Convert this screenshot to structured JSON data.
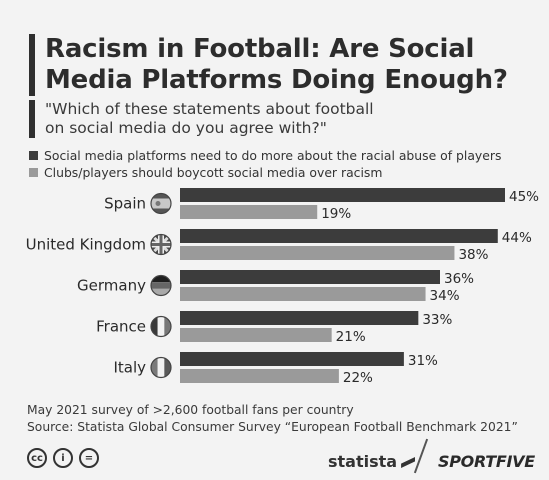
{
  "title_lines": [
    "Racism in Football: Are Social",
    "Media Platforms Doing Enough?"
  ],
  "subtitle_lines": [
    "\"Which of these statements about football",
    "on social media do you agree with?\""
  ],
  "legend": [
    {
      "label": "Social media platforms need to do more about the racial abuse of players",
      "color": "#3c3c3c"
    },
    {
      "label": "Clubs/players should boycott social media over racism",
      "color": "#9a9a9a"
    }
  ],
  "chart_data": {
    "type": "bar",
    "orientation": "horizontal",
    "categories": [
      "Spain",
      "United Kingdom",
      "Germany",
      "France",
      "Italy"
    ],
    "series": [
      {
        "name": "Social media platforms need to do more about the racial abuse of players",
        "values": [
          45,
          44,
          36,
          33,
          31
        ],
        "color": "#3c3c3c"
      },
      {
        "name": "Clubs/players should boycott social media over racism",
        "values": [
          19,
          38,
          34,
          21,
          22
        ],
        "color": "#9a9a9a"
      }
    ],
    "value_suffix": "%",
    "xlim": [
      0,
      45
    ],
    "flag_icons": [
      "spain-flag-icon",
      "uk-flag-icon",
      "germany-flag-icon",
      "france-flag-icon",
      "italy-flag-icon"
    ]
  },
  "footer": {
    "note": "May 2021 survey of >2,600 football fans per country",
    "source": "Source: Statista Global Consumer Survey “European Football Benchmark 2021”"
  },
  "license_icons": [
    "cc-icon",
    "by-icon",
    "nd-icon"
  ],
  "license_glyphs": [
    "cc",
    "i",
    "="
  ],
  "brands": {
    "statista": "statista",
    "sportfive": "SPORTFIVE"
  }
}
